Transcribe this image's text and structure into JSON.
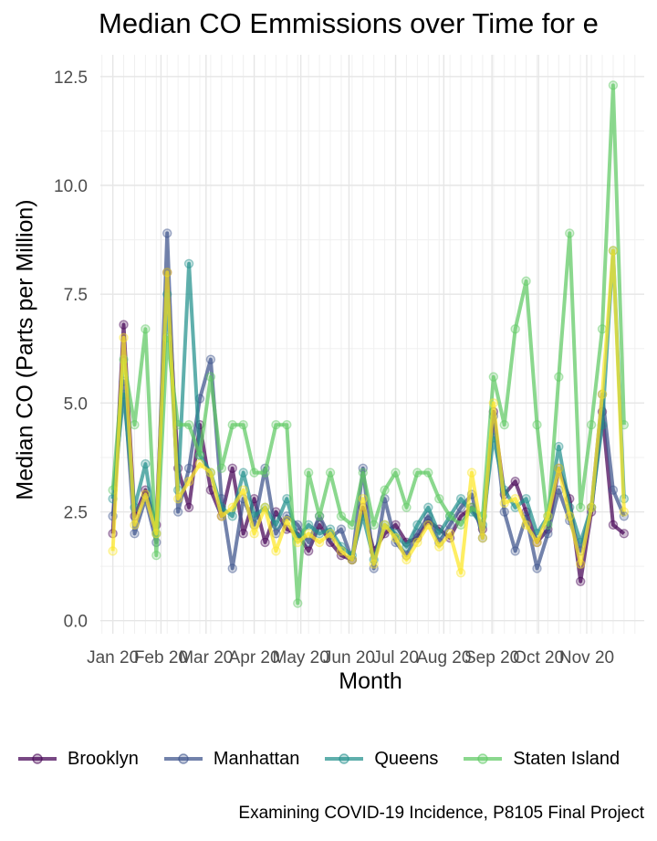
{
  "chart_data": {
    "type": "line",
    "title": "Median CO Emmissions over Time for e",
    "xlabel": "Month",
    "ylabel": "Median CO (Parts per Million)",
    "caption": "Examining COVID-19 Incidence, P8105 Final Project",
    "x_tick_labels": [
      "Jan 20",
      "Feb 20",
      "Mar 20",
      "Apr 20",
      "May 20",
      "Jun 20",
      "Jul 20",
      "Aug 20",
      "Sep 20",
      "Oct 20",
      "Nov 20"
    ],
    "y_ticks": [
      0.0,
      2.5,
      5.0,
      7.5,
      10.0,
      12.5
    ],
    "y_tick_labels": [
      "0.0",
      "2.5",
      "5.0",
      "7.5",
      "10.0",
      "12.5"
    ],
    "ylim": [
      -0.3,
      13.0
    ],
    "grid": true,
    "legend_position": "bottom",
    "marker": "circle",
    "series": [
      {
        "name": "Brooklyn",
        "color": "#440154",
        "x": [
          "2020-01-01",
          "2020-01-08",
          "2020-01-15",
          "2020-01-22",
          "2020-01-29",
          "2020-02-05",
          "2020-02-12",
          "2020-02-19",
          "2020-02-26",
          "2020-03-04",
          "2020-03-11",
          "2020-03-18",
          "2020-03-25",
          "2020-04-01",
          "2020-04-08",
          "2020-04-15",
          "2020-04-22",
          "2020-04-29",
          "2020-05-06",
          "2020-05-13",
          "2020-05-20",
          "2020-05-27",
          "2020-06-03",
          "2020-06-10",
          "2020-06-17",
          "2020-06-24",
          "2020-07-01",
          "2020-07-08",
          "2020-07-15",
          "2020-07-22",
          "2020-07-29",
          "2020-08-05",
          "2020-08-12",
          "2020-08-19",
          "2020-08-26",
          "2020-09-02",
          "2020-09-09",
          "2020-09-16",
          "2020-09-23",
          "2020-09-30",
          "2020-10-07",
          "2020-10-14",
          "2020-10-21",
          "2020-10-28",
          "2020-11-04",
          "2020-11-11",
          "2020-11-18",
          "2020-11-25"
        ],
        "y": [
          2.0,
          6.8,
          2.4,
          3.0,
          2.2,
          8.0,
          3.5,
          2.6,
          4.5,
          3.0,
          2.4,
          3.5,
          2.0,
          2.8,
          1.8,
          2.5,
          2.1,
          2.0,
          1.6,
          2.2,
          1.8,
          1.5,
          1.4,
          2.6,
          1.6,
          2.0,
          2.2,
          1.8,
          1.9,
          2.3,
          2.1,
          1.9,
          2.4,
          2.6,
          2.1,
          4.8,
          2.9,
          3.2,
          2.5,
          1.8,
          2.1,
          3.5,
          2.8,
          0.9,
          2.5,
          4.8,
          2.2,
          2.0
        ]
      },
      {
        "name": "Manhattan",
        "color": "#3b528b",
        "x": [
          "2020-01-01",
          "2020-01-08",
          "2020-01-15",
          "2020-01-22",
          "2020-01-29",
          "2020-02-05",
          "2020-02-12",
          "2020-02-19",
          "2020-02-26",
          "2020-03-04",
          "2020-03-11",
          "2020-03-18",
          "2020-03-25",
          "2020-04-01",
          "2020-04-08",
          "2020-04-15",
          "2020-04-22",
          "2020-04-29",
          "2020-05-06",
          "2020-05-13",
          "2020-05-20",
          "2020-05-27",
          "2020-06-03",
          "2020-06-10",
          "2020-06-17",
          "2020-06-24",
          "2020-07-01",
          "2020-07-08",
          "2020-07-15",
          "2020-07-22",
          "2020-07-29",
          "2020-08-05",
          "2020-08-12",
          "2020-08-19",
          "2020-08-26",
          "2020-09-02",
          "2020-09-09",
          "2020-09-16",
          "2020-09-23",
          "2020-09-30",
          "2020-10-07",
          "2020-10-14",
          "2020-10-21",
          "2020-10-28",
          "2020-11-04",
          "2020-11-11",
          "2020-11-18",
          "2020-11-25"
        ],
        "y": [
          2.4,
          5.5,
          2.0,
          2.8,
          1.8,
          8.9,
          2.5,
          3.5,
          5.1,
          6.0,
          2.8,
          1.2,
          2.8,
          2.2,
          3.5,
          2.0,
          2.4,
          2.2,
          1.8,
          2.4,
          1.9,
          2.1,
          1.4,
          3.5,
          1.2,
          2.8,
          1.8,
          1.5,
          2.0,
          2.4,
          1.8,
          2.2,
          2.6,
          2.9,
          1.9,
          4.7,
          2.5,
          1.6,
          2.4,
          1.2,
          2.0,
          3.0,
          2.3,
          1.6,
          2.6,
          5.2,
          3.0,
          2.4
        ]
      },
      {
        "name": "Queens",
        "color": "#21908c",
        "x": [
          "2020-01-01",
          "2020-01-08",
          "2020-01-15",
          "2020-01-22",
          "2020-01-29",
          "2020-02-05",
          "2020-02-12",
          "2020-02-19",
          "2020-02-26",
          "2020-03-04",
          "2020-03-11",
          "2020-03-18",
          "2020-03-25",
          "2020-04-01",
          "2020-04-08",
          "2020-04-15",
          "2020-04-22",
          "2020-04-29",
          "2020-05-06",
          "2020-05-13",
          "2020-05-20",
          "2020-05-27",
          "2020-06-03",
          "2020-06-10",
          "2020-06-17",
          "2020-06-24",
          "2020-07-01",
          "2020-07-08",
          "2020-07-15",
          "2020-07-22",
          "2020-07-29",
          "2020-08-05",
          "2020-08-12",
          "2020-08-19",
          "2020-08-26",
          "2020-09-02",
          "2020-09-09",
          "2020-09-16",
          "2020-09-23",
          "2020-09-30",
          "2020-10-07",
          "2020-10-14",
          "2020-10-21",
          "2020-10-28",
          "2020-11-04",
          "2020-11-11",
          "2020-11-18",
          "2020-11-25"
        ],
        "y": [
          2.8,
          5.2,
          2.6,
          3.6,
          2.0,
          7.5,
          3.0,
          8.2,
          3.8,
          3.4,
          2.6,
          2.4,
          3.4,
          2.4,
          2.6,
          2.2,
          2.8,
          1.9,
          2.2,
          2.0,
          2.1,
          1.7,
          1.5,
          2.4,
          1.4,
          2.2,
          2.0,
          1.7,
          2.2,
          2.6,
          2.0,
          2.4,
          2.8,
          2.5,
          2.2,
          4.2,
          3.0,
          2.6,
          2.8,
          2.0,
          2.4,
          4.0,
          2.6,
          1.8,
          2.6,
          4.5,
          8.5,
          2.8
        ]
      },
      {
        "name": "Staten Island",
        "color": "#5ec962",
        "x": [
          "2020-01-01",
          "2020-01-08",
          "2020-01-15",
          "2020-01-22",
          "2020-01-29",
          "2020-02-05",
          "2020-02-12",
          "2020-02-19",
          "2020-02-26",
          "2020-03-04",
          "2020-03-11",
          "2020-03-18",
          "2020-03-25",
          "2020-04-01",
          "2020-04-08",
          "2020-04-15",
          "2020-04-22",
          "2020-04-29",
          "2020-05-06",
          "2020-05-13",
          "2020-05-20",
          "2020-05-27",
          "2020-06-03",
          "2020-06-10",
          "2020-06-17",
          "2020-06-24",
          "2020-07-01",
          "2020-07-08",
          "2020-07-15",
          "2020-07-22",
          "2020-07-29",
          "2020-08-05",
          "2020-08-12",
          "2020-08-19",
          "2020-08-26",
          "2020-09-02",
          "2020-09-09",
          "2020-09-16",
          "2020-09-23",
          "2020-09-30",
          "2020-10-07",
          "2020-10-14",
          "2020-10-21",
          "2020-10-28",
          "2020-11-04",
          "2020-11-11",
          "2020-11-18",
          "2020-11-25"
        ],
        "y": [
          3.0,
          6.0,
          4.5,
          6.7,
          1.5,
          6.5,
          4.5,
          4.5,
          3.8,
          5.6,
          3.5,
          4.5,
          4.5,
          3.4,
          3.4,
          4.5,
          4.5,
          0.4,
          3.4,
          2.4,
          3.4,
          2.4,
          2.2,
          3.4,
          2.2,
          3.0,
          3.4,
          2.6,
          3.4,
          3.4,
          2.8,
          2.4,
          2.2,
          2.6,
          2.4,
          5.6,
          4.5,
          6.7,
          7.8,
          4.5,
          2.2,
          5.6,
          8.9,
          2.6,
          4.5,
          6.7,
          12.3,
          4.5
        ]
      },
      {
        "name": "",
        "color": "#fde725",
        "x": [
          "2020-01-01",
          "2020-01-08",
          "2020-01-15",
          "2020-01-22",
          "2020-01-29",
          "2020-02-05",
          "2020-02-12",
          "2020-02-19",
          "2020-02-26",
          "2020-03-04",
          "2020-03-11",
          "2020-03-18",
          "2020-03-25",
          "2020-04-01",
          "2020-04-08",
          "2020-04-15",
          "2020-04-22",
          "2020-04-29",
          "2020-05-06",
          "2020-05-13",
          "2020-05-20",
          "2020-05-27",
          "2020-06-03",
          "2020-06-10",
          "2020-06-17",
          "2020-06-24",
          "2020-07-01",
          "2020-07-08",
          "2020-07-15",
          "2020-07-22",
          "2020-07-29",
          "2020-08-05",
          "2020-08-12",
          "2020-08-19",
          "2020-08-26",
          "2020-09-02",
          "2020-09-09",
          "2020-09-16",
          "2020-09-23",
          "2020-09-30",
          "2020-10-07",
          "2020-10-14",
          "2020-10-21",
          "2020-10-28",
          "2020-11-04",
          "2020-11-11",
          "2020-11-18",
          "2020-11-25"
        ],
        "y": [
          1.6,
          6.5,
          2.2,
          2.9,
          2.0,
          8.0,
          2.8,
          3.2,
          3.6,
          3.4,
          2.4,
          2.6,
          3.0,
          2.0,
          2.6,
          1.6,
          2.3,
          1.8,
          2.0,
          1.8,
          2.0,
          1.6,
          1.4,
          2.8,
          1.3,
          2.2,
          1.9,
          1.4,
          1.8,
          2.2,
          1.7,
          2.0,
          1.1,
          3.4,
          1.9,
          5.0,
          2.7,
          2.8,
          2.2,
          1.8,
          2.4,
          3.5,
          2.4,
          1.3,
          2.6,
          5.2,
          8.5,
          2.5
        ]
      }
    ]
  }
}
